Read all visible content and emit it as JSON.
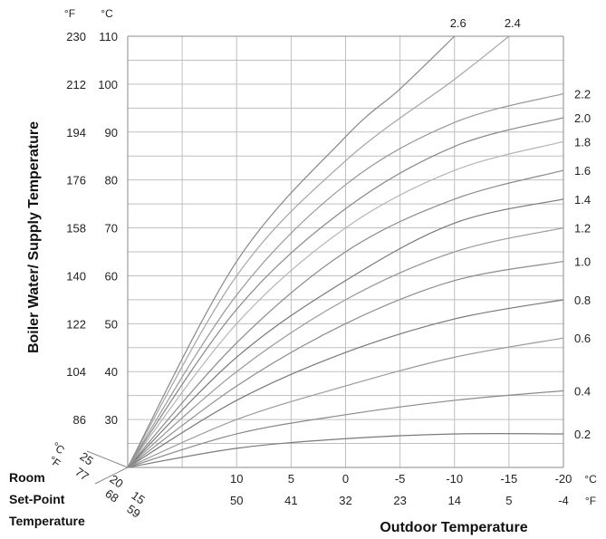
{
  "chart_data": {
    "type": "line",
    "title": "",
    "xlabel": "Outdoor Temperature",
    "ylabel": "Boiler Water/ Supply Temperature",
    "room_label": [
      "Room",
      "Set-Point",
      "Temperature"
    ],
    "x_unit_c": "°C",
    "x_unit_f": "°F",
    "y_unit_f": "°F",
    "y_unit_c": "°C",
    "x_ticks_c": [
      "10",
      "5",
      "0",
      "-5",
      "-10",
      "-15",
      "-20"
    ],
    "x_ticks_f": [
      "50",
      "41",
      "32",
      "23",
      "14",
      "5",
      "-4"
    ],
    "y_ticks_c": [
      "110",
      "100",
      "90",
      "80",
      "70",
      "60",
      "50",
      "40",
      "30"
    ],
    "y_ticks_f": [
      "230",
      "212",
      "194",
      "176",
      "158",
      "140",
      "122",
      "104",
      "86"
    ],
    "room_ticks_c": [
      "25",
      "20",
      "15"
    ],
    "room_ticks_f": [
      "77",
      "68",
      "59"
    ],
    "xlim_c": [
      20,
      -20
    ],
    "ylim_c": [
      20,
      110
    ],
    "grid": true,
    "series": [
      {
        "name": "0.2",
        "x": [
          20,
          10,
          0,
          -10,
          -20
        ],
        "y": [
          20,
          24,
          26,
          27,
          27
        ]
      },
      {
        "name": "0.4",
        "x": [
          20,
          10,
          0,
          -10,
          -20
        ],
        "y": [
          20,
          27,
          31,
          34,
          36
        ]
      },
      {
        "name": "0.6",
        "x": [
          20,
          10,
          0,
          -10,
          -20
        ],
        "y": [
          20,
          30,
          37,
          43,
          47
        ]
      },
      {
        "name": "0.8",
        "x": [
          20,
          10,
          0,
          -10,
          -20
        ],
        "y": [
          20,
          34,
          44,
          51,
          55
        ]
      },
      {
        "name": "1.0",
        "x": [
          20,
          10,
          0,
          -10,
          -20
        ],
        "y": [
          20,
          37,
          50,
          59,
          63
        ]
      },
      {
        "name": "1.2",
        "x": [
          20,
          10,
          0,
          -10,
          -20
        ],
        "y": [
          20,
          40,
          55,
          65,
          70
        ]
      },
      {
        "name": "1.4",
        "x": [
          20,
          10,
          0,
          -10,
          -20
        ],
        "y": [
          20,
          43,
          59,
          71,
          76
        ]
      },
      {
        "name": "1.6",
        "x": [
          20,
          10,
          0,
          -10,
          -20
        ],
        "y": [
          20,
          46,
          65,
          76,
          82
        ]
      },
      {
        "name": "1.8",
        "x": [
          20,
          10,
          0,
          -10,
          -20
        ],
        "y": [
          20,
          50,
          70,
          82,
          88
        ]
      },
      {
        "name": "2.0",
        "x": [
          20,
          10,
          0,
          -10,
          -20
        ],
        "y": [
          20,
          53,
          74,
          87,
          93
        ]
      },
      {
        "name": "2.2",
        "x": [
          20,
          10,
          0,
          -10,
          -20
        ],
        "y": [
          20,
          56,
          79,
          92,
          98
        ]
      },
      {
        "name": "2.4",
        "x": [
          20,
          10,
          0,
          -10,
          -15
        ],
        "y": [
          20,
          60,
          84,
          101,
          110
        ]
      },
      {
        "name": "2.6",
        "x": [
          20,
          10,
          0,
          -5,
          -10
        ],
        "y": [
          20,
          63,
          89,
          99,
          110
        ]
      }
    ]
  }
}
